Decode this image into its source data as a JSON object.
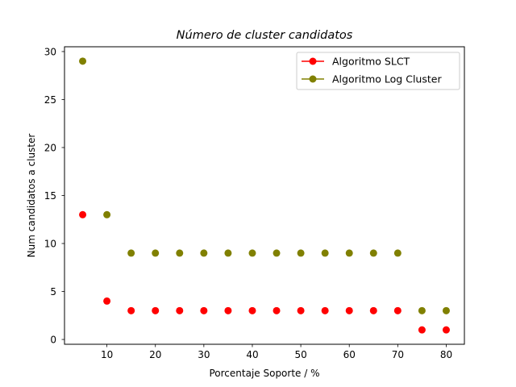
{
  "chart_data": {
    "type": "scatter",
    "title": "Número de cluster candidatos",
    "xlabel": "Porcentaje Soporte / %",
    "ylabel": "Num candidatos a cluster",
    "xlim": [
      1.25,
      83.75
    ],
    "ylim": [
      -0.5,
      30.5
    ],
    "xticks": [
      10,
      20,
      30,
      40,
      50,
      60,
      70,
      80
    ],
    "yticks": [
      0,
      5,
      10,
      15,
      20,
      25,
      30
    ],
    "x": [
      5,
      10,
      15,
      20,
      25,
      30,
      35,
      40,
      45,
      50,
      55,
      60,
      65,
      70,
      75,
      80
    ],
    "series": [
      {
        "name": "Algoritmo SLCT",
        "color": "#ff0000",
        "values": [
          13,
          4,
          3,
          3,
          3,
          3,
          3,
          3,
          3,
          3,
          3,
          3,
          3,
          3,
          1,
          1
        ]
      },
      {
        "name": "Algoritmo Log Cluster",
        "color": "#808000",
        "values": [
          29,
          13,
          9,
          9,
          9,
          9,
          9,
          9,
          9,
          9,
          9,
          9,
          9,
          9,
          3,
          3
        ]
      }
    ],
    "legend": "top-right",
    "grid": false
  }
}
